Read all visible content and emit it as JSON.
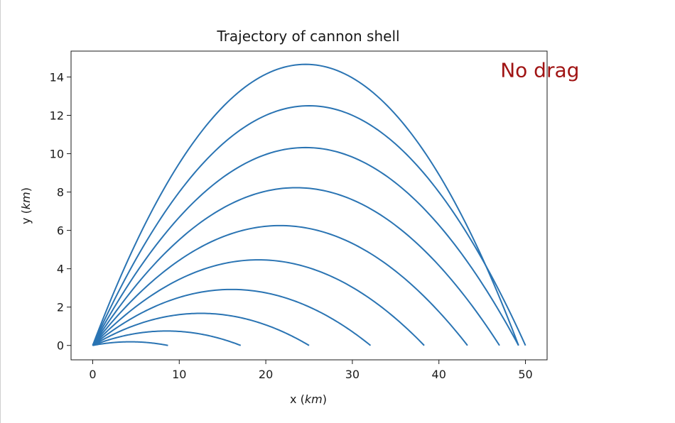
{
  "chart_data": {
    "type": "line",
    "title": "Trajectory of cannon shell",
    "xlabel": "x",
    "xlabel_unit": "km",
    "ylabel": "y",
    "ylabel_unit": "km",
    "xlim": [
      -2.5,
      52.5
    ],
    "ylim": [
      -0.75,
      15.35
    ],
    "xticks": [
      0,
      10,
      20,
      30,
      40,
      50
    ],
    "yticks": [
      0,
      2,
      4,
      6,
      8,
      10,
      12,
      14
    ],
    "grid": false,
    "legend": "none",
    "annotation": {
      "text": "No drag",
      "x": 47.1,
      "y": 14.0,
      "color": "#a01414"
    },
    "line_color": "#2a74b3",
    "trajectory_model": "projectile without air resistance, launched from the origin at 700 m/s, g = 9.8 m/s²",
    "series": [
      {
        "launch_angle_deg": 5,
        "range_km": 8.7,
        "apex_height_km": 0.19
      },
      {
        "launch_angle_deg": 10,
        "range_km": 17.1,
        "apex_height_km": 0.76
      },
      {
        "launch_angle_deg": 15,
        "range_km": 25.0,
        "apex_height_km": 1.67
      },
      {
        "launch_angle_deg": 20,
        "range_km": 32.1,
        "apex_height_km": 2.93
      },
      {
        "launch_angle_deg": 25,
        "range_km": 38.3,
        "apex_height_km": 4.46
      },
      {
        "launch_angle_deg": 30,
        "range_km": 43.3,
        "apex_height_km": 6.25
      },
      {
        "launch_angle_deg": 35,
        "range_km": 47.0,
        "apex_height_km": 8.22
      },
      {
        "launch_angle_deg": 40,
        "range_km": 49.2,
        "apex_height_km": 10.33
      },
      {
        "launch_angle_deg": 45,
        "range_km": 50.0,
        "apex_height_km": 12.5
      },
      {
        "launch_angle_deg": 50,
        "range_km": 49.2,
        "apex_height_km": 14.67
      }
    ]
  }
}
